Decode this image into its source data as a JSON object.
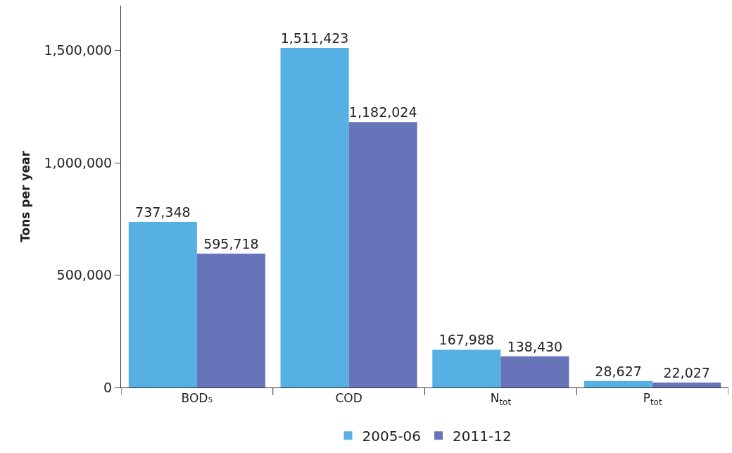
{
  "chart_data": {
    "type": "bar",
    "ylabel": "Tons per year",
    "categories": [
      "BOD₅",
      "COD",
      "N$_{tot}$",
      "P$_{tot}$"
    ],
    "series": [
      {
        "name": "2005-06",
        "color": "#56b0e3",
        "values": [
          737348,
          1511423,
          167988,
          28627
        ],
        "value_labels": [
          "737,348",
          "1,511,423",
          "167,988",
          "28,627"
        ]
      },
      {
        "name": "2011-12",
        "color": "#6874b9",
        "values": [
          595718,
          1182024,
          138430,
          22027
        ],
        "value_labels": [
          "595,718",
          "1,182,024",
          "138,430",
          "22,027"
        ]
      }
    ],
    "ylim": [
      0,
      1700000
    ],
    "yticks": [
      0,
      {
        "value": 500000,
        "label": "500,000"
      },
      {
        "value": 1000000,
        "label": "1,000,000"
      },
      {
        "value": 1500000,
        "label": "1,500,000"
      }
    ],
    "legend": "bottom"
  }
}
